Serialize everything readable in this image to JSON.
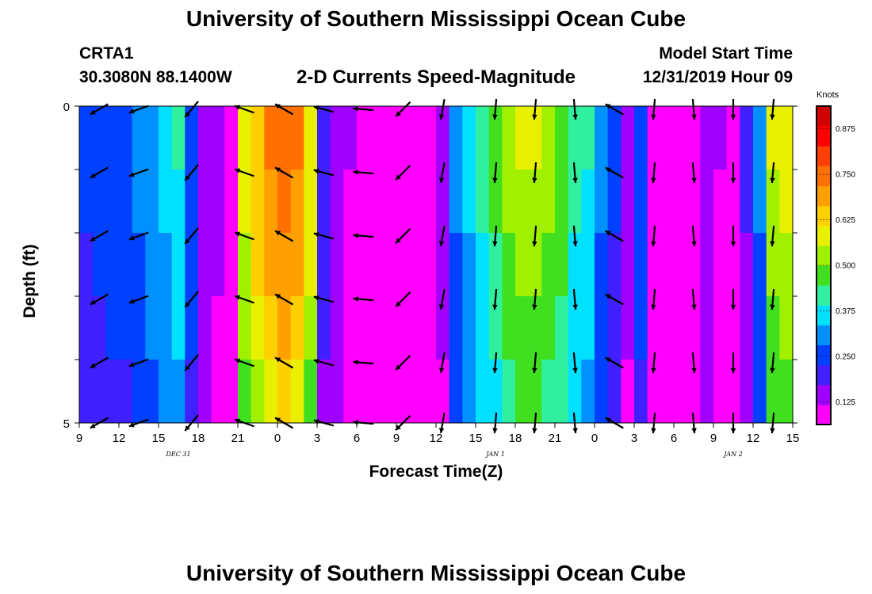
{
  "header": {
    "title": "University of Southern Mississippi Ocean Cube",
    "station": "CRTA1",
    "coords": "30.3080N 88.1400W",
    "subtitle": "2-D Currents Speed-Magnitude",
    "model_start_label": "Model Start Time",
    "model_start_time": "12/31/2019 Hour 09"
  },
  "footer": {
    "title": "University of Southern Mississippi Ocean Cube"
  },
  "chart_data": {
    "type": "heatmap",
    "xlabel": "Forecast Time(Z)",
    "ylabel": "Depth (ft)",
    "x_tick_labels": [
      "9",
      "12",
      "15",
      "18",
      "21",
      "0",
      "3",
      "6",
      "9",
      "12",
      "15",
      "18",
      "21",
      "0",
      "3",
      "6",
      "9",
      "12",
      "15"
    ],
    "date_labels": [
      {
        "label": "DEC 31",
        "at_tick": 2.5
      },
      {
        "label": "JAN 1",
        "at_tick": 10.5
      },
      {
        "label": "JAN 2",
        "at_tick": 16.5
      }
    ],
    "y_tick_labels": [
      "0",
      "5"
    ],
    "ylim": [
      0,
      5
    ],
    "hours": 54,
    "depth_layers": 5,
    "colorbar": {
      "unit": "Knots",
      "range": [
        0.0625,
        0.9375
      ],
      "labels": [
        "0.875",
        "0.750",
        "0.625",
        "0.500",
        "0.375",
        "0.250",
        "0.125"
      ],
      "colors": [
        "#ff00ff",
        "#a000ff",
        "#4020ff",
        "#0040ff",
        "#0090ff",
        "#00e0ff",
        "#30f0a0",
        "#40e020",
        "#a0f000",
        "#e8f000",
        "#ffd000",
        "#ffa000",
        "#ff7000",
        "#ff4000",
        "#ff0000",
        "#d00000"
      ]
    },
    "speed_profile_knots": [
      0.24,
      0.25,
      0.26,
      0.27,
      0.3,
      0.33,
      0.36,
      0.4,
      0.26,
      0.17,
      0.13,
      0.09,
      0.58,
      0.66,
      0.72,
      0.76,
      0.72,
      0.6,
      0.2,
      0.15,
      0.12,
      0.1,
      0.1,
      0.11,
      0.1,
      0.09,
      0.11,
      0.14,
      0.3,
      0.36,
      0.42,
      0.46,
      0.52,
      0.56,
      0.56,
      0.52,
      0.48,
      0.42,
      0.4,
      0.3,
      0.24,
      0.14,
      0.26,
      0.1,
      0.08,
      0.06,
      0.09,
      0.16,
      0.12,
      0.09,
      0.18,
      0.3,
      0.56,
      0.58,
      0.5
    ],
    "depth_speed_factor": [
      1.0,
      0.97,
      0.93,
      0.88,
      0.82
    ],
    "arrows": {
      "times": [
        1.5,
        4.5,
        8.5,
        12.5,
        15.5,
        18.5,
        21.5,
        24.5,
        27.5,
        31.5,
        34.5,
        37.5,
        40.5,
        43.5,
        46.5,
        49.5,
        52.5
      ],
      "depths": [
        0.05,
        1.05,
        2.05,
        3.05,
        4.05,
        5.0
      ],
      "direction_deg": [
        210,
        200,
        230,
        160,
        150,
        165,
        175,
        225,
        260,
        265,
        265,
        275,
        150,
        265,
        275,
        270,
        265
      ]
    }
  }
}
